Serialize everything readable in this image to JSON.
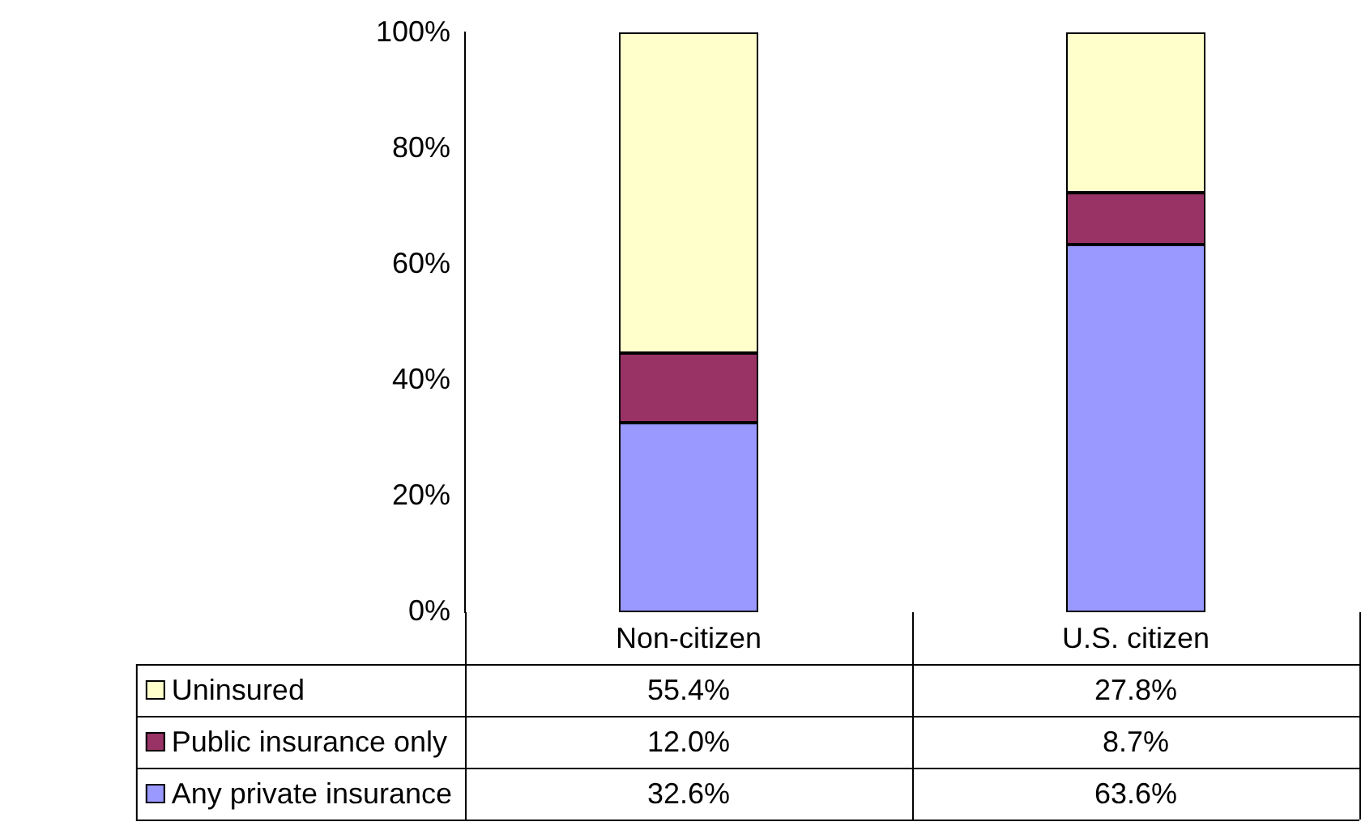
{
  "chart_data": {
    "type": "bar",
    "stacked": true,
    "categories": [
      "Non-citizen",
      "U.S. citizen"
    ],
    "series": [
      {
        "name": "Any private insurance",
        "color": "#9999ff",
        "values": [
          32.6,
          63.6
        ],
        "value_labels": [
          "32.6%",
          "63.6%"
        ]
      },
      {
        "name": "Public insurance only",
        "color": "#993366",
        "values": [
          12.0,
          8.7
        ],
        "value_labels": [
          "12.0%",
          "8.7%"
        ]
      },
      {
        "name": "Uninsured",
        "color": "#ffffcc",
        "values": [
          55.4,
          27.8
        ],
        "value_labels": [
          "55.4%",
          "27.8%"
        ]
      }
    ],
    "ylim": [
      0,
      100.1
    ],
    "yticks": [
      {
        "value": 0,
        "label": "0%"
      },
      {
        "value": 20,
        "label": "20%"
      },
      {
        "value": 40,
        "label": "40%"
      },
      {
        "value": 60,
        "label": "60%"
      },
      {
        "value": 80,
        "label": "80%"
      },
      {
        "value": 100,
        "label": "100%"
      }
    ],
    "grid": false,
    "legend": "bottom"
  }
}
